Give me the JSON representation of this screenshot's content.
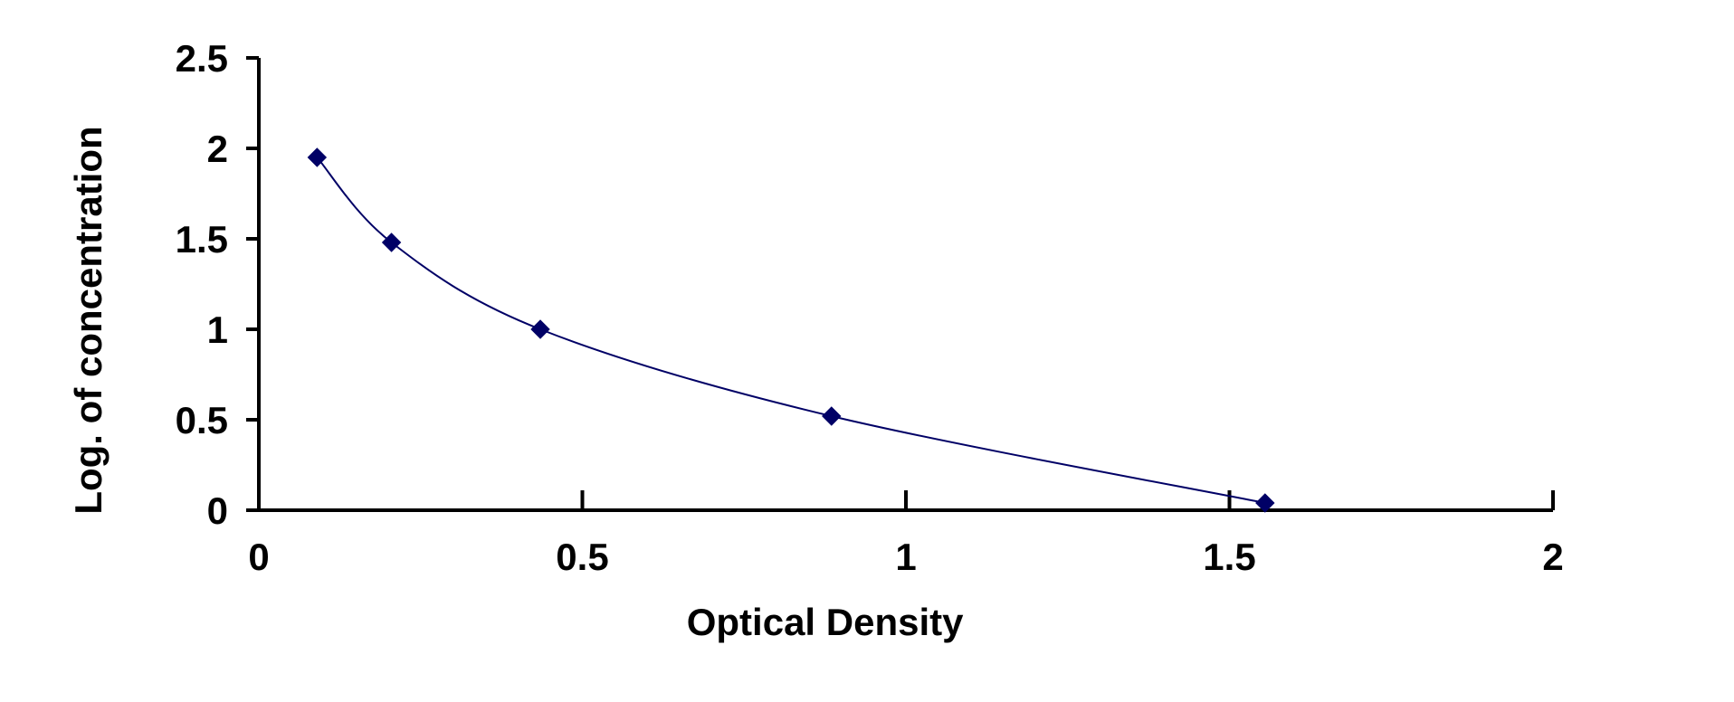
{
  "chart_data": {
    "type": "scatter",
    "title": "",
    "xlabel": "Optical Density",
    "ylabel": "Log. of concentration",
    "xlim": [
      0,
      2
    ],
    "ylim": [
      0,
      2.5
    ],
    "xticks": [
      "0",
      "0.5",
      "1",
      "1.5",
      "2"
    ],
    "yticks": [
      "0",
      "0.5",
      "1",
      "1.5",
      "2",
      "2.5"
    ],
    "grid": false,
    "legend": "none",
    "marker": "diamond",
    "series_color": "#000066",
    "fit_line": "smooth curve through points",
    "series": [
      {
        "x": [
          0.09,
          0.205,
          0.435,
          0.885,
          1.555
        ],
        "y": [
          1.95,
          1.48,
          1.0,
          0.52,
          0.04
        ]
      }
    ]
  }
}
